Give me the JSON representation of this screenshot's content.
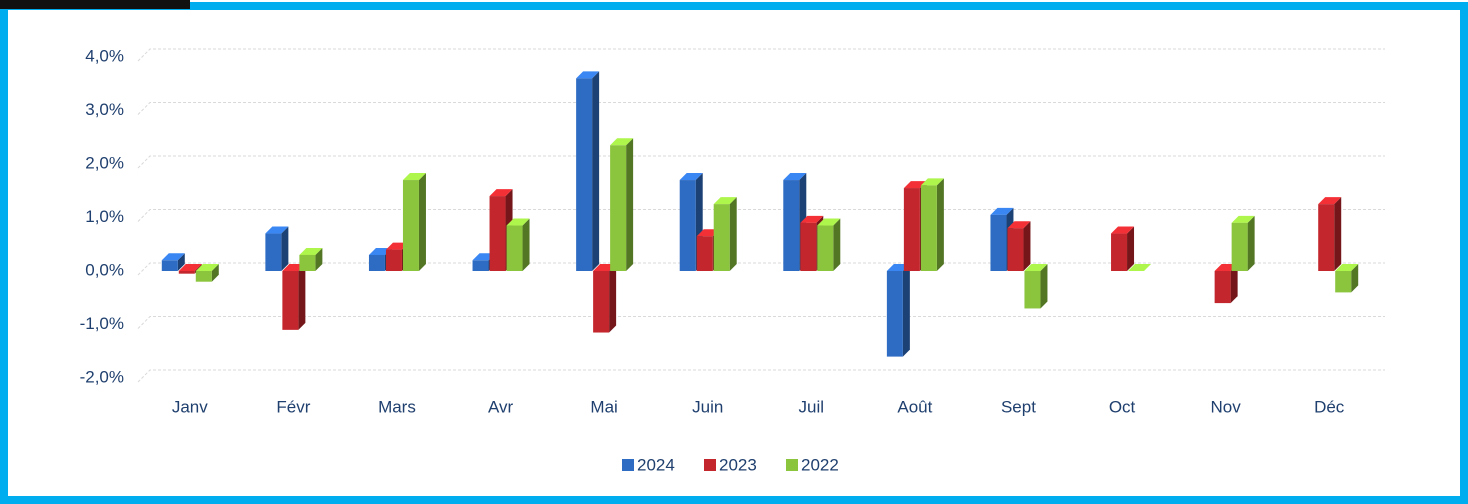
{
  "chart_data": {
    "type": "bar3d",
    "categories": [
      "Janv",
      "Févr",
      "Mars",
      "Avr",
      "Mai",
      "Juin",
      "Juil",
      "Août",
      "Sept",
      "Oct",
      "Nov",
      "Déc"
    ],
    "series": [
      {
        "name": "2024",
        "color": "#2e6cc3",
        "values": [
          0.2,
          0.7,
          0.3,
          0.2,
          3.6,
          1.7,
          1.7,
          -1.6,
          1.05,
          null,
          null,
          null
        ]
      },
      {
        "name": "2023",
        "color": "#c3262c",
        "values": [
          -0.05,
          -1.1,
          0.4,
          1.4,
          -1.15,
          0.65,
          0.9,
          1.55,
          0.8,
          0.7,
          -0.6,
          1.25
        ]
      },
      {
        "name": "2022",
        "color": "#8bc43d",
        "values": [
          -0.2,
          0.3,
          1.7,
          0.85,
          2.35,
          1.25,
          0.85,
          1.6,
          -0.7,
          0.0,
          0.9,
          -0.4
        ]
      }
    ],
    "ylim": [
      -2,
      4
    ],
    "yticks": [
      {
        "value": -2,
        "label": "-2,0%"
      },
      {
        "value": -1,
        "label": "-1,0%"
      },
      {
        "value": 0,
        "label": "0,0%"
      },
      {
        "value": 1,
        "label": "1,0%"
      },
      {
        "value": 2,
        "label": "2,0%"
      },
      {
        "value": 3,
        "label": "3,0%"
      },
      {
        "value": 4,
        "label": "4,0%"
      }
    ],
    "grid": true,
    "legend": "bottom"
  }
}
